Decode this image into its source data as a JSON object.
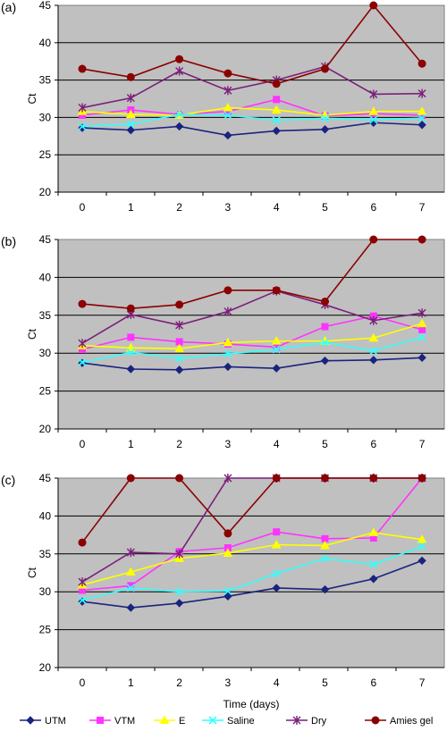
{
  "chart_data": [
    {
      "type": "line",
      "panel_label": "(a)",
      "ylabel": "Ct",
      "xlabel": "",
      "ylim": [
        20,
        45
      ],
      "yticks": [
        20,
        25,
        30,
        35,
        40,
        45
      ],
      "x": [
        0,
        1,
        2,
        3,
        4,
        5,
        6,
        7
      ],
      "grid": true,
      "series": [
        {
          "name": "UTM",
          "color": "#1a237e",
          "marker": "diamond",
          "values": [
            28.6,
            28.3,
            28.8,
            27.6,
            28.2,
            28.4,
            29.3,
            29.0
          ]
        },
        {
          "name": "VTM",
          "color": "#ff33ff",
          "marker": "square",
          "values": [
            30.3,
            31.0,
            30.4,
            30.8,
            32.4,
            30.2,
            30.5,
            30.3
          ]
        },
        {
          "name": "E",
          "color": "#ffff00",
          "marker": "triangle",
          "values": [
            30.8,
            30.4,
            30.3,
            31.3,
            31.0,
            30.3,
            30.8,
            30.8
          ]
        },
        {
          "name": "Saline",
          "color": "#33ffff",
          "marker": "x",
          "values": [
            28.8,
            29.1,
            30.4,
            30.3,
            29.6,
            29.9,
            29.7,
            29.9
          ]
        },
        {
          "name": "Dry",
          "color": "#7b1f7b",
          "marker": "star",
          "values": [
            31.3,
            32.6,
            36.2,
            33.6,
            35.0,
            36.8,
            33.1,
            33.2
          ]
        },
        {
          "name": "Amies gel",
          "color": "#8b0000",
          "marker": "circle",
          "values": [
            36.5,
            35.4,
            37.8,
            35.9,
            34.5,
            36.5,
            45.0,
            37.2
          ]
        }
      ]
    },
    {
      "type": "line",
      "panel_label": "(b)",
      "ylabel": "Ct",
      "xlabel": "",
      "ylim": [
        20,
        45
      ],
      "yticks": [
        20,
        25,
        30,
        35,
        40,
        45
      ],
      "x": [
        0,
        1,
        2,
        3,
        4,
        5,
        6,
        7
      ],
      "grid": true,
      "series": [
        {
          "name": "UTM",
          "color": "#1a237e",
          "marker": "diamond",
          "values": [
            28.7,
            27.9,
            27.8,
            28.2,
            28.0,
            29.0,
            29.1,
            29.4
          ]
        },
        {
          "name": "VTM",
          "color": "#ff33ff",
          "marker": "square",
          "values": [
            30.5,
            32.1,
            31.5,
            31.2,
            30.8,
            33.5,
            34.9,
            33.1
          ]
        },
        {
          "name": "E",
          "color": "#ffff00",
          "marker": "triangle",
          "values": [
            31.0,
            30.7,
            30.6,
            31.4,
            31.6,
            31.6,
            32.0,
            33.9
          ]
        },
        {
          "name": "Saline",
          "color": "#33ffff",
          "marker": "x",
          "values": [
            28.8,
            30.1,
            29.3,
            29.9,
            30.5,
            31.4,
            30.3,
            32.1
          ]
        },
        {
          "name": "Dry",
          "color": "#7b1f7b",
          "marker": "star",
          "values": [
            31.3,
            35.1,
            33.7,
            35.5,
            38.2,
            36.4,
            34.3,
            35.3
          ]
        },
        {
          "name": "Amies gel",
          "color": "#8b0000",
          "marker": "circle",
          "values": [
            36.5,
            35.9,
            36.4,
            38.3,
            38.3,
            36.8,
            45.0,
            45.0
          ]
        }
      ]
    },
    {
      "type": "line",
      "panel_label": "(c)",
      "ylabel": "Ct",
      "xlabel": "Time (days)",
      "ylim": [
        20,
        45
      ],
      "yticks": [
        20,
        25,
        30,
        35,
        40,
        45
      ],
      "x": [
        0,
        1,
        2,
        3,
        4,
        5,
        6,
        7
      ],
      "grid": true,
      "series": [
        {
          "name": "UTM",
          "color": "#1a237e",
          "marker": "diamond",
          "values": [
            28.7,
            27.9,
            28.5,
            29.4,
            30.5,
            30.3,
            31.7,
            34.1
          ]
        },
        {
          "name": "VTM",
          "color": "#ff33ff",
          "marker": "square",
          "values": [
            30.2,
            30.8,
            35.3,
            35.8,
            37.9,
            37.0,
            37.1,
            45.0
          ]
        },
        {
          "name": "E",
          "color": "#ffff00",
          "marker": "triangle",
          "values": [
            30.9,
            32.6,
            34.4,
            35.1,
            36.2,
            36.1,
            37.8,
            36.9
          ]
        },
        {
          "name": "Saline",
          "color": "#33ffff",
          "marker": "x",
          "values": [
            28.9,
            30.5,
            30.0,
            30.1,
            32.4,
            34.4,
            33.6,
            36.0
          ]
        },
        {
          "name": "Dry",
          "color": "#7b1f7b",
          "marker": "star",
          "values": [
            31.3,
            35.2,
            35.0,
            45.0,
            45.0,
            45.0,
            45.0,
            45.0
          ]
        },
        {
          "name": "Amies gel",
          "color": "#8b0000",
          "marker": "circle",
          "values": [
            36.5,
            45.0,
            45.0,
            37.7,
            45.0,
            45.0,
            45.0,
            45.0
          ]
        }
      ]
    }
  ],
  "legend": {
    "placement": "bottom",
    "items": [
      "UTM",
      "VTM",
      "E",
      "Saline",
      "Dry",
      "Amies gel"
    ]
  }
}
